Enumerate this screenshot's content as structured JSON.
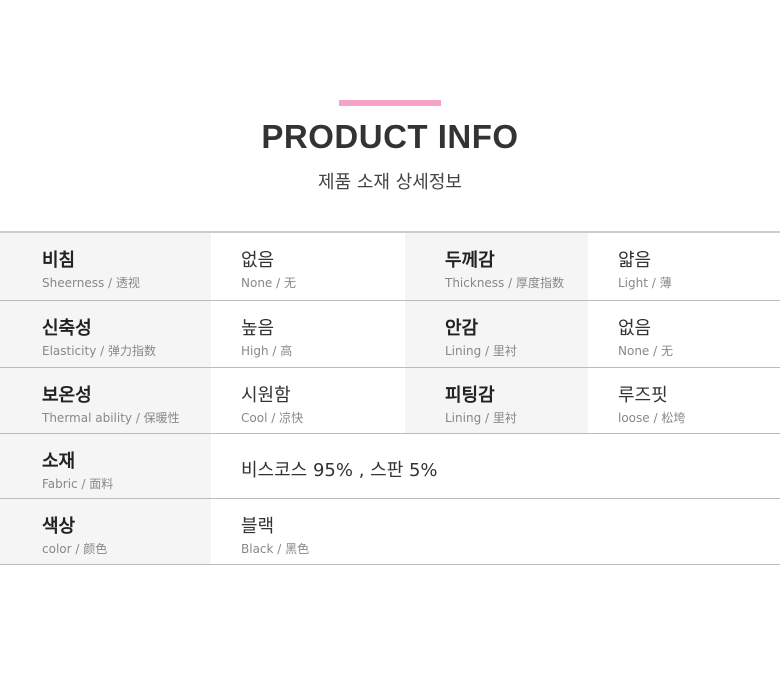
{
  "header": {
    "accent_color": "#f5a3c7",
    "title": "PRODUCT INFO",
    "subtitle": "제품 소재 상세정보"
  },
  "rows": [
    [
      {
        "ko": "비침",
        "en": "Sheerness / 透视"
      },
      {
        "ko": "없음",
        "en": "None / 无"
      },
      {
        "ko": "두께감",
        "en": "Thickness / 厚度指数"
      },
      {
        "ko": "얇음",
        "en": "Light / 薄"
      }
    ],
    [
      {
        "ko": "신축성",
        "en": "Elasticity / 弹力指数"
      },
      {
        "ko": "높음",
        "en": "High / 高"
      },
      {
        "ko": "안감",
        "en": "Lining / 里衬"
      },
      {
        "ko": "없음",
        "en": "None / 无"
      }
    ],
    [
      {
        "ko": "보온성",
        "en": "Thermal ability / 保暖性"
      },
      {
        "ko": "시원함",
        "en": "Cool / 凉快"
      },
      {
        "ko": "피팅감",
        "en": "Lining / 里衬"
      },
      {
        "ko": "루즈핏",
        "en": "loose  / 松垮"
      }
    ]
  ],
  "fabric": {
    "ko": "소재",
    "en": "Fabric / 面料",
    "value": "비스코스 95% , 스판  5%"
  },
  "color": {
    "ko": "색상",
    "en": "color / 颜色",
    "value_ko": "블랙",
    "value_en": "Black / 黑色"
  }
}
